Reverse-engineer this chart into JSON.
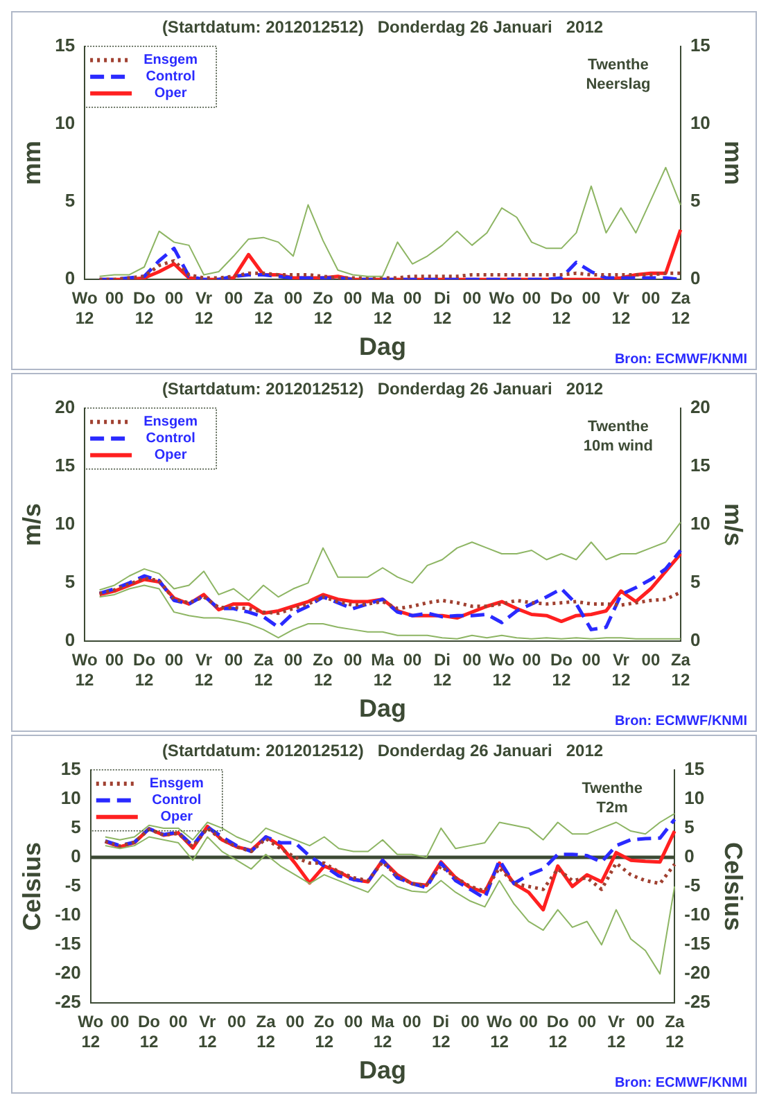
{
  "chart_data": [
    {
      "type": "line",
      "title": "(Startdatum: 2012012512)   Donderdag 26 Januari   2012",
      "xlabel": "Dag",
      "ylabel": "mm",
      "y2label": "mm",
      "annotations": [
        "Twenthe\nNeerslag",
        "Bron: ECMWF/KNMI"
      ],
      "legend": "top left",
      "categories": [
        "Wo\n12",
        null,
        "00",
        null,
        "Do\n12",
        null,
        "00",
        null,
        "Vr\n12",
        null,
        "00",
        null,
        "Za\n12",
        null,
        "00",
        null,
        "Zo\n12",
        null,
        "00",
        null,
        "Ma\n12",
        null,
        "00",
        null,
        "Di\n12",
        null,
        "00",
        null,
        "Wo\n12",
        null,
        "00",
        null,
        "Do\n12",
        null,
        "00",
        null,
        "Vr\n12",
        null,
        "00",
        null,
        "Za\n12"
      ],
      "ylim": [
        0,
        15
      ],
      "yticks": [
        0,
        5,
        10,
        15
      ],
      "y2lim": [
        0,
        15
      ],
      "y2ticks": [
        0,
        5,
        10,
        15
      ],
      "series": [
        {
          "color": "#8db563",
          "line_style": "solid",
          "values": [
            null,
            0.2,
            0.3,
            0.3,
            0.8,
            3.1,
            2.4,
            2.2,
            0.3,
            0.5,
            1.5,
            2.6,
            2.7,
            2.4,
            1.5,
            4.8,
            2.5,
            0.6,
            0.3,
            0.2,
            0.2,
            2.4,
            1.0,
            1.5,
            2.2,
            3.1,
            2.2,
            3.0,
            4.6,
            4.0,
            2.4,
            2.0,
            2.0,
            3.0,
            6.0,
            3.0,
            4.6,
            3.0,
            5.1,
            7.2,
            4.8
          ]
        },
        {
          "name": "Ensgem",
          "color": "#a04030",
          "line_style": "dotted",
          "values": [
            null,
            0,
            0,
            0.1,
            0.2,
            0.9,
            1.2,
            0.3,
            0.1,
            0.1,
            0.2,
            0.4,
            0.4,
            0.3,
            0.3,
            0.3,
            0.2,
            0.1,
            0.1,
            0.1,
            0.1,
            0.1,
            0.2,
            0.2,
            0.2,
            0.2,
            0.3,
            0.3,
            0.3,
            0.3,
            0.3,
            0.3,
            0.3,
            0.4,
            0.3,
            0.3,
            0.3,
            0.3,
            0.3,
            0.4,
            0.4
          ]
        },
        {
          "name": "Control",
          "color": "#2a2aff",
          "line_style": "dashed",
          "values": [
            null,
            0,
            0,
            0.1,
            0.2,
            1.2,
            2.0,
            0.2,
            0,
            0,
            0.2,
            0.3,
            0.3,
            0.2,
            0.1,
            0.1,
            0.1,
            0.1,
            0,
            0,
            0,
            0,
            0,
            0,
            0,
            0,
            0,
            0,
            0,
            0,
            0,
            0,
            0.1,
            1.1,
            0.5,
            0.1,
            0.1,
            0.1,
            0.1,
            0.1,
            0
          ]
        },
        {
          "name": "Oper",
          "color": "#ff2020",
          "line_style": "solid",
          "values": [
            null,
            0,
            0,
            0,
            0.1,
            0.5,
            1.0,
            0.1,
            0,
            0,
            0.1,
            1.6,
            0.3,
            0.3,
            0.1,
            0.1,
            0.1,
            0.2,
            0,
            0,
            0,
            0,
            0,
            0,
            0,
            0,
            0,
            0,
            0,
            0,
            0,
            0,
            0,
            0,
            0,
            0,
            0.1,
            0.3,
            0.4,
            0.4,
            3.2
          ]
        }
      ]
    },
    {
      "type": "line",
      "title": "(Startdatum: 2012012512)   Donderdag 26 Januari   2012",
      "xlabel": "Dag",
      "ylabel": "m/s",
      "y2label": "m/s",
      "annotations": [
        "Twenthe\n10m wind",
        "Bron: ECMWF/KNMI"
      ],
      "legend": "top left",
      "categories": [
        "Wo\n12",
        null,
        "00",
        null,
        "Do\n12",
        null,
        "00",
        null,
        "Vr\n12",
        null,
        "00",
        null,
        "Za\n12",
        null,
        "00",
        null,
        "Zo\n12",
        null,
        "00",
        null,
        "Ma\n12",
        null,
        "00",
        null,
        "Di\n12",
        null,
        "00",
        null,
        "Wo\n12",
        null,
        "00",
        null,
        "Do\n12",
        null,
        "00",
        null,
        "Vr\n12",
        null,
        "00",
        null,
        "Za\n12"
      ],
      "ylim": [
        0,
        20
      ],
      "yticks": [
        0,
        5,
        10,
        15,
        20
      ],
      "y2lim": [
        0,
        20
      ],
      "y2ticks": [
        0,
        5,
        10,
        15,
        20
      ],
      "series": [
        {
          "color": "#8db563",
          "line_style": "solid",
          "values": [
            null,
            4.4,
            4.8,
            5.6,
            6.2,
            5.8,
            4.5,
            4.8,
            6.0,
            4.0,
            4.5,
            3.5,
            4.8,
            3.8,
            4.5,
            5.0,
            8.0,
            5.5,
            5.5,
            5.5,
            6.3,
            5.5,
            5.0,
            6.5,
            7.0,
            8.0,
            8.5,
            8.0,
            7.5,
            7.5,
            7.8,
            7.0,
            7.5,
            7.0,
            8.5,
            7.0,
            7.5,
            7.5,
            8.0,
            8.5,
            10.2
          ]
        },
        {
          "color": "#8db563",
          "line_style": "solid",
          "values": [
            null,
            3.8,
            4.0,
            4.5,
            4.8,
            4.5,
            2.5,
            2.2,
            2.0,
            2.0,
            1.8,
            1.5,
            1.0,
            0.3,
            1.0,
            1.5,
            1.5,
            1.2,
            1.0,
            0.8,
            0.8,
            0.5,
            0.5,
            0.5,
            0.3,
            0.2,
            0.5,
            0.3,
            0.5,
            0.3,
            0.2,
            0.3,
            0.2,
            0.3,
            0.2,
            0.3,
            0.3,
            0.2,
            0.2,
            0.2,
            0.2
          ]
        },
        {
          "name": "Ensgem",
          "color": "#a04030",
          "line_style": "dotted",
          "values": [
            null,
            4.1,
            4.4,
            4.9,
            5.4,
            5.2,
            3.6,
            3.3,
            3.8,
            2.9,
            2.9,
            2.8,
            2.5,
            2.4,
            2.8,
            3.2,
            3.8,
            3.4,
            3.1,
            3.2,
            3.4,
            2.8,
            3.0,
            3.3,
            3.5,
            3.3,
            3.0,
            3.0,
            3.2,
            3.5,
            3.3,
            3.2,
            3.3,
            3.4,
            3.2,
            3.2,
            3.1,
            3.3,
            3.5,
            3.6,
            4.2
          ]
        },
        {
          "name": "Control",
          "color": "#2a2aff",
          "line_style": "dashed",
          "values": [
            null,
            4.1,
            4.5,
            5.0,
            5.6,
            5.2,
            3.5,
            3.2,
            3.9,
            2.8,
            2.8,
            2.5,
            2.1,
            1.2,
            2.4,
            3.0,
            3.8,
            3.3,
            2.8,
            3.2,
            3.6,
            2.5,
            2.2,
            2.4,
            2.1,
            2.2,
            2.2,
            2.3,
            1.6,
            2.6,
            3.2,
            3.8,
            4.5,
            3.2,
            1.0,
            1.2,
            4.0,
            4.6,
            5.3,
            6.2,
            7.8
          ]
        },
        {
          "name": "Oper",
          "color": "#ff2020",
          "line_style": "solid",
          "values": [
            null,
            4.0,
            4.3,
            4.8,
            5.3,
            5.1,
            3.7,
            3.2,
            4.0,
            2.7,
            3.2,
            3.2,
            2.4,
            2.6,
            3.0,
            3.4,
            4.0,
            3.6,
            3.4,
            3.4,
            3.6,
            2.6,
            2.2,
            2.2,
            2.2,
            2.0,
            2.5,
            3.0,
            3.4,
            2.8,
            2.3,
            2.2,
            1.7,
            2.2,
            2.3,
            2.6,
            4.3,
            3.4,
            4.5,
            6.0,
            7.5
          ]
        }
      ]
    },
    {
      "type": "line",
      "title": "(Startdatum: 2012012512)   Donderdag 26 Januari   2012",
      "xlabel": "Dag",
      "ylabel": "Celsius",
      "y2label": "Celsius",
      "annotations": [
        "Twenthe\nT2m",
        "Bron: ECMWF/KNMI"
      ],
      "legend": "top left",
      "ref_lines": [
        {
          "axis": "y",
          "value": 0,
          "color": "#3c4a34"
        }
      ],
      "categories": [
        "Wo\n12",
        null,
        "00",
        null,
        "Do\n12",
        null,
        "00",
        null,
        "Vr\n12",
        null,
        "00",
        null,
        "Za\n12",
        null,
        "00",
        null,
        "Zo\n12",
        null,
        "00",
        null,
        "Ma\n12",
        null,
        "00",
        null,
        "Di\n12",
        null,
        "00",
        null,
        "Wo\n12",
        null,
        "00",
        null,
        "Do\n12",
        null,
        "00",
        null,
        "Vr\n12",
        null,
        "00",
        null,
        "Za\n12"
      ],
      "ylim": [
        -25,
        15
      ],
      "yticks": [
        -25,
        -20,
        -15,
        -10,
        -5,
        0,
        5,
        10,
        15
      ],
      "y2lim": [
        -25,
        15
      ],
      "y2ticks": [
        -25,
        -20,
        -15,
        -10,
        -5,
        0,
        5,
        10,
        15
      ],
      "series": [
        {
          "color": "#8db563",
          "line_style": "solid",
          "values": [
            null,
            3.5,
            3.0,
            3.5,
            5.5,
            5.0,
            5.0,
            3.0,
            6.0,
            5.0,
            3.5,
            2.5,
            5.0,
            4.0,
            3.0,
            2.0,
            3.5,
            1.5,
            1.0,
            1.0,
            3.0,
            0.5,
            0.5,
            0.0,
            5.0,
            1.5,
            2.0,
            2.5,
            6.0,
            5.5,
            5.0,
            3.0,
            6.0,
            4.0,
            4.0,
            5.0,
            6.0,
            4.5,
            4.0,
            6.0,
            7.5
          ]
        },
        {
          "color": "#8db563",
          "line_style": "solid",
          "values": [
            null,
            2.0,
            1.5,
            2.0,
            3.5,
            3.0,
            2.5,
            -0.5,
            3.5,
            1.0,
            -0.5,
            -2.0,
            0.5,
            -1.5,
            -3.0,
            -4.5,
            -3.0,
            -4.0,
            -5.0,
            -6.0,
            -3.0,
            -5.0,
            -5.8,
            -6.0,
            -4.0,
            -6.0,
            -7.5,
            -8.5,
            -4.0,
            -8.0,
            -11.0,
            -12.5,
            -9.0,
            -12.0,
            -11.0,
            -15.0,
            -9.0,
            -14.0,
            -16.0,
            -20.0,
            -5.0
          ]
        },
        {
          "name": "Ensgem",
          "color": "#a04030",
          "line_style": "dotted",
          "values": [
            null,
            2.7,
            1.9,
            2.6,
            4.8,
            3.8,
            4.1,
            1.8,
            5.0,
            3.0,
            1.8,
            1.0,
            3.2,
            1.5,
            0,
            -1.0,
            -1.0,
            -2.5,
            -3.5,
            -4.0,
            -0.8,
            -3.2,
            -4.5,
            -4.8,
            -1.5,
            -3.5,
            -5.0,
            -5.8,
            -1.8,
            -4.5,
            -5.0,
            -5.5,
            -2.0,
            -4.0,
            -3.5,
            -5.5,
            -1.0,
            -3.0,
            -4.0,
            -4.5,
            -1.2
          ]
        },
        {
          "name": "Control",
          "color": "#2a2aff",
          "line_style": "dashed",
          "values": [
            null,
            2.8,
            2.0,
            2.6,
            4.9,
            3.9,
            4.3,
            2.0,
            5.2,
            3.5,
            2.0,
            1.0,
            3.5,
            2.5,
            2.5,
            0.2,
            -1.5,
            -3.2,
            -3.8,
            -4.2,
            -0.5,
            -3.5,
            -4.5,
            -5.2,
            -1.0,
            -4.0,
            -5.5,
            -7.0,
            -0.5,
            -4.5,
            -3.0,
            -2.0,
            0.5,
            0.5,
            0.3,
            -0.8,
            2.0,
            3.0,
            3.2,
            3.3,
            6.5
          ]
        },
        {
          "name": "Oper",
          "color": "#ff2020",
          "line_style": "solid",
          "values": [
            null,
            2.7,
            1.8,
            2.5,
            4.9,
            3.8,
            4.2,
            1.6,
            5.3,
            3.0,
            1.8,
            1.2,
            3.5,
            2.0,
            -1.0,
            -4.4,
            -1.5,
            -2.5,
            -3.8,
            -4.2,
            -0.5,
            -3.0,
            -4.5,
            -4.8,
            -0.8,
            -3.5,
            -5.2,
            -6.0,
            -1.0,
            -4.5,
            -6.0,
            -9.0,
            -1.5,
            -5.0,
            -3.0,
            -4.2,
            0.8,
            -0.5,
            -0.7,
            -0.8,
            4.5
          ]
        }
      ]
    }
  ]
}
